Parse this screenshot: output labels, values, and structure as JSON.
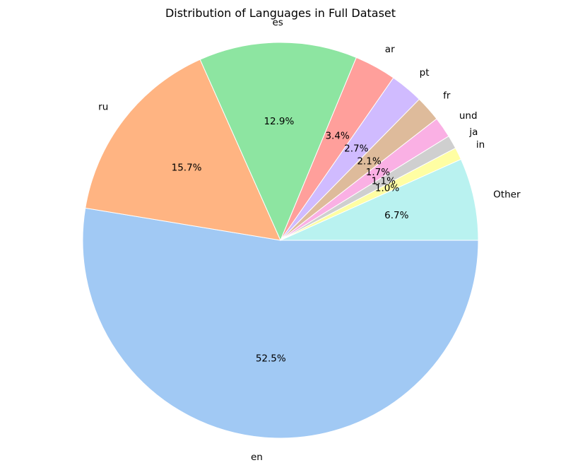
{
  "chart_data": {
    "type": "pie",
    "title": "Distribution of Languages in Full Dataset",
    "start_angle_deg": 0,
    "direction": "clockwise",
    "slices": [
      {
        "label": "en",
        "value": 52.5,
        "pct_text": "52.5%",
        "color": "#a1c9f4"
      },
      {
        "label": "ru",
        "value": 15.7,
        "pct_text": "15.7%",
        "color": "#ffb482"
      },
      {
        "label": "es",
        "value": 12.9,
        "pct_text": "12.9%",
        "color": "#8de5a1"
      },
      {
        "label": "ar",
        "value": 3.4,
        "pct_text": "3.4%",
        "color": "#ff9f9b"
      },
      {
        "label": "pt",
        "value": 2.7,
        "pct_text": "2.7%",
        "color": "#d0bbff"
      },
      {
        "label": "fr",
        "value": 2.1,
        "pct_text": "2.1%",
        "color": "#debb9b"
      },
      {
        "label": "und",
        "value": 1.7,
        "pct_text": "1.7%",
        "color": "#fab0e4"
      },
      {
        "label": "ja",
        "value": 1.1,
        "pct_text": "1.1%",
        "color": "#cfcfcf"
      },
      {
        "label": "in",
        "value": 1.0,
        "pct_text": "1.0%",
        "color": "#fffea3"
      },
      {
        "label": "Other",
        "value": 6.7,
        "pct_text": "6.7%",
        "color": "#b9f2f0"
      }
    ]
  }
}
